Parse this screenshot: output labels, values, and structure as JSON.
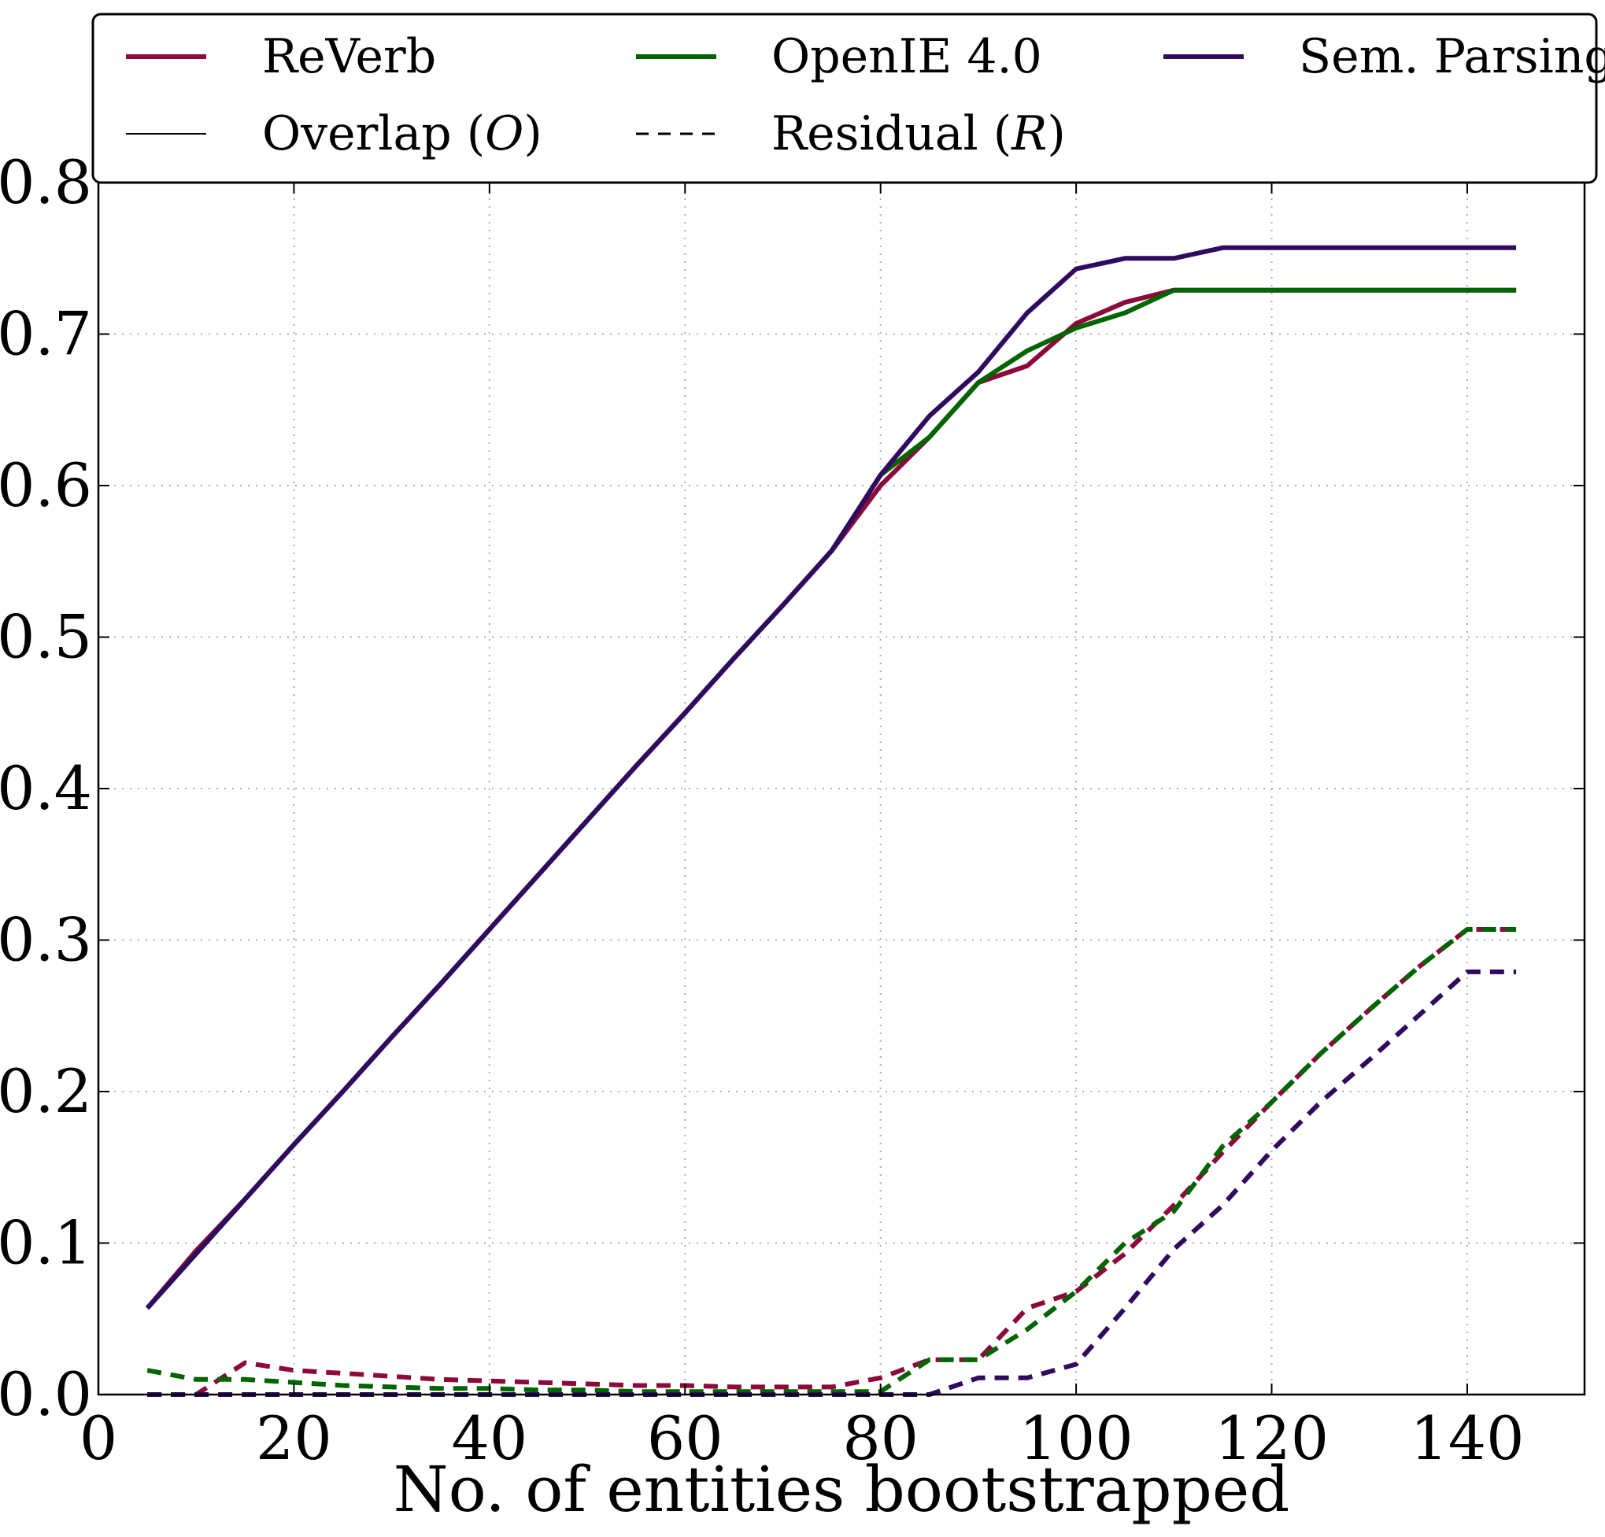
{
  "chart_data": {
    "type": "line",
    "title": "",
    "xlabel": "No. of entities bootstrapped",
    "ylabel": "",
    "xlim": [
      0,
      152
    ],
    "ylim": [
      0,
      0.8
    ],
    "xticks": [
      0,
      20,
      40,
      60,
      80,
      100,
      120,
      140
    ],
    "xtick_labels": [
      "0",
      "20",
      "40",
      "60",
      "80",
      "100",
      "120",
      "140"
    ],
    "yticks": [
      0,
      0.1,
      0.2,
      0.3,
      0.4,
      0.5,
      0.6,
      0.7,
      0.8
    ],
    "ytick_labels": [
      "0.0",
      "0.1",
      "0.2",
      "0.3",
      "0.4",
      "0.5",
      "0.6",
      "0.7",
      "0.8"
    ],
    "grid": true,
    "legend_position": "top",
    "legend": [
      {
        "label": "ReVerb",
        "color": "#8b0a3b",
        "style": "solid-thick"
      },
      {
        "label": "OpenIE 4.0",
        "color": "#006400",
        "style": "solid-thick"
      },
      {
        "label": "Sem. Parsing",
        "color": "#2f0a5f",
        "style": "solid-thick"
      },
      {
        "label": "Overlap (",
        "italic": "O",
        "suffix": ")",
        "color": "#000000",
        "style": "solid-thin"
      },
      {
        "label": "Residual (",
        "italic": "R",
        "suffix": ")",
        "color": "#000000",
        "style": "dashed"
      }
    ],
    "x": [
      5,
      10,
      15,
      20,
      25,
      30,
      35,
      40,
      45,
      50,
      55,
      60,
      65,
      70,
      75,
      80,
      85,
      90,
      95,
      100,
      105,
      110,
      115,
      120,
      125,
      130,
      135,
      140,
      145
    ],
    "series": [
      {
        "name": "ReVerb",
        "kind": "overlap",
        "color": "#8b0a3b",
        "values": [
          0.057,
          0.095,
          0.129,
          0.165,
          0.2,
          0.236,
          0.271,
          0.307,
          0.343,
          0.379,
          0.415,
          0.45,
          0.486,
          0.521,
          0.557,
          0.6,
          0.632,
          0.668,
          0.679,
          0.707,
          0.721,
          0.729,
          0.729,
          0.729,
          0.729,
          0.729,
          0.729,
          0.729,
          0.729
        ]
      },
      {
        "name": "OpenIE 4.0",
        "kind": "overlap",
        "color": "#006400",
        "values": [
          0.057,
          0.093,
          0.129,
          0.165,
          0.2,
          0.236,
          0.271,
          0.307,
          0.343,
          0.379,
          0.415,
          0.45,
          0.486,
          0.521,
          0.557,
          0.607,
          0.632,
          0.668,
          0.689,
          0.704,
          0.714,
          0.729,
          0.729,
          0.729,
          0.729,
          0.729,
          0.729,
          0.729,
          0.729
        ]
      },
      {
        "name": "Sem. Parsing",
        "kind": "overlap",
        "color": "#2f0a5f",
        "values": [
          0.057,
          0.093,
          0.129,
          0.165,
          0.2,
          0.236,
          0.271,
          0.307,
          0.343,
          0.379,
          0.415,
          0.45,
          0.486,
          0.521,
          0.557,
          0.607,
          0.646,
          0.675,
          0.714,
          0.743,
          0.75,
          0.75,
          0.757,
          0.757,
          0.757,
          0.757,
          0.757,
          0.757,
          0.757
        ]
      },
      {
        "name": "ReVerb",
        "kind": "residual",
        "color": "#8b0a3b",
        "values": [
          0.0,
          0.0,
          0.021,
          0.016,
          0.014,
          0.012,
          0.01,
          0.009,
          0.008,
          0.007,
          0.006,
          0.006,
          0.005,
          0.005,
          0.005,
          0.011,
          0.023,
          0.023,
          0.057,
          0.068,
          0.093,
          0.125,
          0.16,
          0.193,
          0.225,
          0.254,
          0.282,
          0.307,
          0.307
        ]
      },
      {
        "name": "OpenIE 4.0",
        "kind": "residual",
        "color": "#006400",
        "values": [
          0.016,
          0.01,
          0.01,
          0.008,
          0.006,
          0.005,
          0.004,
          0.004,
          0.003,
          0.003,
          0.002,
          0.002,
          0.002,
          0.002,
          0.002,
          0.002,
          0.023,
          0.023,
          0.043,
          0.068,
          0.1,
          0.121,
          0.164,
          0.193,
          0.225,
          0.254,
          0.282,
          0.307,
          0.307
        ]
      },
      {
        "name": "Sem. Parsing",
        "kind": "residual",
        "color": "#2f0a5f",
        "values": [
          0.0,
          0.0,
          0.0,
          0.0,
          0.0,
          0.0,
          0.0,
          0.0,
          0.0,
          0.0,
          0.0,
          0.0,
          0.0,
          0.0,
          0.0,
          0.0,
          0.0,
          0.011,
          0.011,
          0.02,
          0.057,
          0.096,
          0.125,
          0.161,
          0.193,
          0.221,
          0.25,
          0.279,
          0.279
        ]
      }
    ]
  }
}
